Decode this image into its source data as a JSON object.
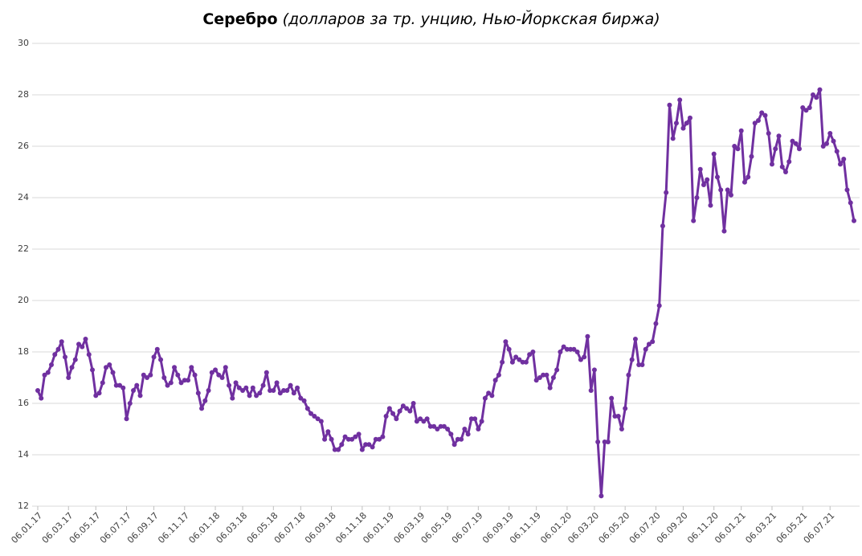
{
  "chart_data": {
    "type": "line",
    "title": "Серебро",
    "subtitle": "(долларов за тр. унцию, Нью-Йоркская биржа)",
    "categories": [
      "06.01.17",
      null,
      null,
      null,
      null,
      null,
      null,
      null,
      null,
      "06.03.17",
      null,
      null,
      null,
      null,
      null,
      null,
      null,
      "06.05.17",
      null,
      null,
      null,
      null,
      null,
      null,
      null,
      null,
      "06.07.17",
      null,
      null,
      null,
      null,
      null,
      null,
      null,
      "06.09.17",
      null,
      null,
      null,
      null,
      null,
      null,
      null,
      null,
      "06.11.17",
      null,
      null,
      null,
      null,
      null,
      null,
      null,
      null,
      "06.01.18",
      null,
      null,
      null,
      null,
      null,
      null,
      null,
      "06.03.18",
      null,
      null,
      null,
      null,
      null,
      null,
      null,
      null,
      "06.05.18",
      null,
      null,
      null,
      null,
      null,
      null,
      null,
      "06.07.18",
      null,
      null,
      null,
      null,
      null,
      null,
      null,
      null,
      "06.09.18",
      null,
      null,
      null,
      null,
      null,
      null,
      null,
      null,
      "06.11.18",
      null,
      null,
      null,
      null,
      null,
      null,
      null,
      "06.01.19",
      null,
      null,
      null,
      null,
      null,
      null,
      null,
      null,
      "06.03.19",
      null,
      null,
      null,
      null,
      null,
      null,
      null,
      "06.05.19",
      null,
      null,
      null,
      null,
      null,
      null,
      null,
      null,
      "06.07.19",
      null,
      null,
      null,
      null,
      null,
      null,
      null,
      null,
      "06.09.19",
      null,
      null,
      null,
      null,
      null,
      null,
      null,
      "06.11.19",
      null,
      null,
      null,
      null,
      null,
      null,
      null,
      null,
      "06.01.20",
      null,
      null,
      null,
      null,
      null,
      null,
      null,
      "06.03.20",
      null,
      null,
      null,
      null,
      null,
      null,
      null,
      null,
      "06.05.20",
      null,
      null,
      null,
      null,
      null,
      null,
      null,
      null,
      "06.07.20",
      null,
      null,
      null,
      null,
      null,
      null,
      null,
      "06.09.20",
      null,
      null,
      null,
      null,
      null,
      null,
      null,
      null,
      "06.11.20",
      null,
      null,
      null,
      null,
      null,
      null,
      null,
      "06.01.21",
      null,
      null,
      null,
      null,
      null,
      null,
      null,
      null,
      "06.03.21",
      null,
      null,
      null,
      null,
      null,
      null,
      null,
      null,
      "06.05.21",
      null,
      null,
      null,
      null,
      null,
      null,
      null,
      "06.07.21",
      null,
      null,
      null,
      null,
      null,
      null,
      null
    ],
    "series": [
      {
        "color": "#7030a0",
        "values": [
          16.5,
          16.2,
          17.1,
          17.2,
          17.5,
          17.9,
          18.1,
          18.4,
          17.8,
          17.0,
          17.4,
          17.7,
          18.3,
          18.2,
          18.5,
          17.9,
          17.3,
          16.3,
          16.4,
          16.8,
          17.4,
          17.5,
          17.2,
          16.7,
          16.7,
          16.6,
          15.4,
          16.0,
          16.5,
          16.7,
          16.3,
          17.1,
          17.0,
          17.1,
          17.8,
          18.1,
          17.7,
          17.0,
          16.7,
          16.8,
          17.4,
          17.1,
          16.8,
          16.9,
          16.9,
          17.4,
          17.1,
          16.4,
          15.8,
          16.1,
          16.5,
          17.2,
          17.3,
          17.1,
          17.0,
          17.4,
          16.7,
          16.2,
          16.8,
          16.6,
          16.5,
          16.6,
          16.3,
          16.6,
          16.3,
          16.4,
          16.7,
          17.2,
          16.5,
          16.5,
          16.8,
          16.4,
          16.5,
          16.5,
          16.7,
          16.4,
          16.6,
          16.2,
          16.1,
          15.8,
          15.6,
          15.5,
          15.4,
          15.3,
          14.6,
          14.9,
          14.6,
          14.2,
          14.2,
          14.4,
          14.7,
          14.6,
          14.6,
          14.7,
          14.8,
          14.2,
          14.4,
          14.4,
          14.3,
          14.6,
          14.6,
          14.7,
          15.5,
          15.8,
          15.6,
          15.4,
          15.7,
          15.9,
          15.8,
          15.7,
          16.0,
          15.3,
          15.4,
          15.3,
          15.4,
          15.1,
          15.1,
          15.0,
          15.1,
          15.1,
          15.0,
          14.8,
          14.4,
          14.6,
          14.6,
          15.0,
          14.8,
          15.4,
          15.4,
          15.0,
          15.3,
          16.2,
          16.4,
          16.3,
          16.9,
          17.1,
          17.6,
          18.4,
          18.1,
          17.6,
          17.8,
          17.7,
          17.6,
          17.6,
          17.9,
          18.0,
          16.9,
          17.0,
          17.1,
          17.1,
          16.6,
          17.0,
          17.3,
          18.0,
          18.2,
          18.1,
          18.1,
          18.1,
          18.0,
          17.7,
          17.8,
          18.6,
          16.5,
          17.3,
          14.5,
          12.4,
          14.5,
          14.5,
          16.2,
          15.5,
          15.5,
          15.0,
          15.8,
          17.1,
          17.7,
          18.5,
          17.5,
          17.5,
          18.1,
          18.3,
          18.4,
          19.1,
          19.8,
          22.9,
          24.2,
          27.6,
          26.3,
          26.9,
          27.8,
          26.7,
          26.9,
          27.1,
          23.1,
          24.0,
          25.1,
          24.5,
          24.7,
          23.7,
          25.7,
          24.8,
          24.3,
          22.7,
          24.3,
          24.1,
          26.0,
          25.9,
          26.6,
          24.6,
          24.8,
          25.6,
          26.9,
          27.0,
          27.3,
          27.2,
          26.5,
          25.3,
          25.9,
          26.4,
          25.2,
          25.0,
          25.4,
          26.2,
          26.1,
          25.9,
          27.5,
          27.4,
          27.5,
          28.0,
          27.9,
          28.2,
          26.0,
          26.1,
          26.5,
          26.2,
          25.8,
          25.3,
          25.5,
          24.3,
          23.8,
          23.1
        ]
      }
    ],
    "ylim": [
      12,
      30
    ],
    "yticks": [
      12,
      14,
      16,
      18,
      20,
      22,
      24,
      26,
      28,
      30
    ],
    "grid": true,
    "markers": true
  }
}
